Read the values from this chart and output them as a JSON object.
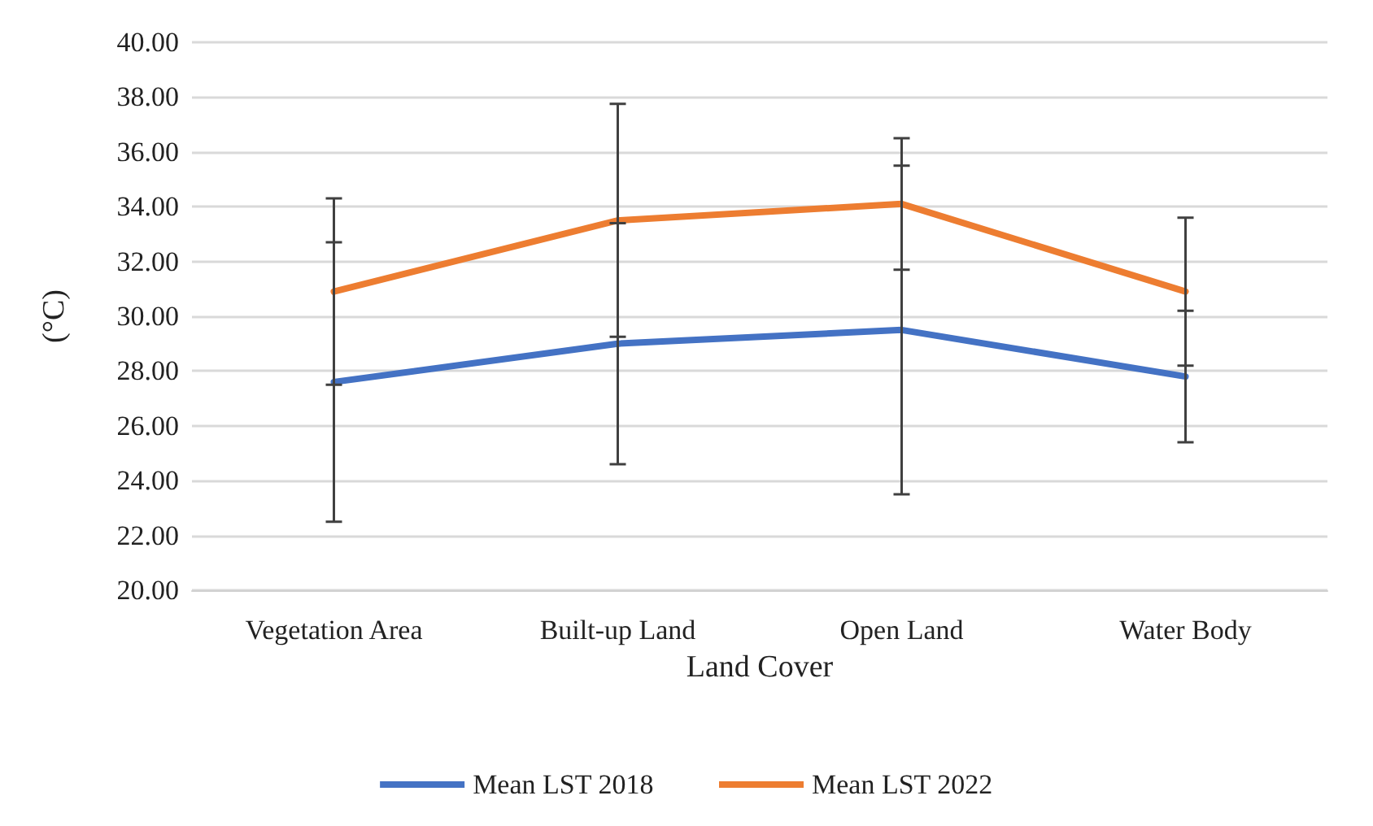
{
  "chart_data": {
    "type": "line",
    "xlabel": "Land Cover",
    "ylabel": "(°C)",
    "categories": [
      "Vegetation Area",
      "Built-up Land",
      "Open Land",
      "Water Body"
    ],
    "series": [
      {
        "name": "Mean LST 2018",
        "color": "#4472c4",
        "values": [
          27.6,
          29.0,
          29.5,
          27.8
        ],
        "errors": [
          5.1,
          4.4,
          6.0,
          2.4
        ]
      },
      {
        "name": "Mean LST 2022",
        "color": "#ed7d31",
        "values": [
          30.9,
          33.5,
          34.1,
          30.9
        ],
        "errors": [
          3.4,
          4.25,
          2.4,
          2.7
        ]
      }
    ],
    "ylim": [
      20,
      40
    ],
    "yticks": [
      {
        "value": 20,
        "label": "20.00"
      },
      {
        "value": 22,
        "label": "22.00"
      },
      {
        "value": 24,
        "label": "24.00"
      },
      {
        "value": 26,
        "label": "26.00"
      },
      {
        "value": 28,
        "label": "28.00"
      },
      {
        "value": 30,
        "label": "30.00"
      },
      {
        "value": 32,
        "label": "32.00"
      },
      {
        "value": 34,
        "label": "34.00"
      },
      {
        "value": 36,
        "label": "36.00"
      },
      {
        "value": 38,
        "label": "38.00"
      },
      {
        "value": 40,
        "label": "40.00"
      }
    ],
    "grid": "y",
    "legend": "bottom",
    "marker": "none",
    "line_style": "solid"
  }
}
